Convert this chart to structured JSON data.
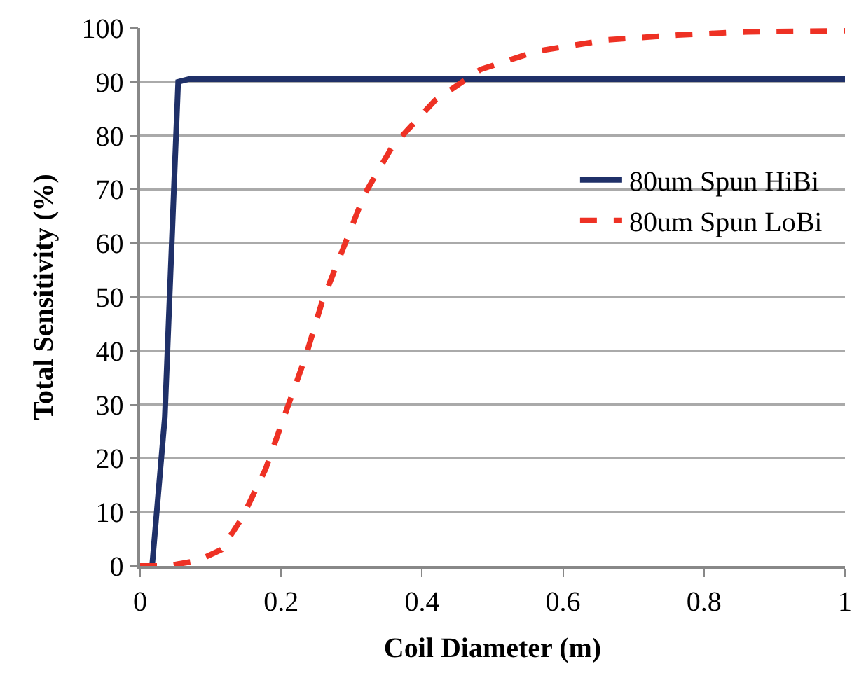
{
  "chart_data": {
    "type": "line",
    "xlabel": "Coil Diameter (m)",
    "ylabel": "Total Sensitivity (%)",
    "xlim": [
      0,
      1
    ],
    "xticks": [
      0,
      0.2,
      0.4,
      0.6,
      0.8,
      1
    ],
    "ylim": [
      0,
      100
    ],
    "yticks": [
      0,
      10,
      20,
      30,
      40,
      50,
      60,
      70,
      80,
      90,
      100
    ],
    "grid": "y",
    "legend": "right",
    "marker": "none",
    "series": [
      {
        "name": "80um Spun HiBi",
        "color": "#1f3068",
        "line_style": "solid",
        "x": [
          0.017,
          0.035,
          0.054,
          0.069,
          1.0
        ],
        "values": [
          0,
          27.6,
          90,
          90.5,
          90.5
        ]
      },
      {
        "name": "80um Spun LoBi",
        "color": "#ee3124",
        "line_style": "dashed",
        "x": [
          0,
          0.038,
          0.082,
          0.115,
          0.145,
          0.178,
          0.205,
          0.235,
          0.258,
          0.288,
          0.318,
          0.358,
          0.418,
          0.483,
          0.563,
          0.663,
          0.762,
          0.862,
          1.0
        ],
        "values": [
          0,
          0,
          1,
          3,
          9,
          18,
          28,
          39,
          49,
          59,
          69,
          78,
          86.5,
          92.3,
          95.7,
          97.8,
          98.7,
          99.3,
          99.5
        ]
      }
    ]
  }
}
